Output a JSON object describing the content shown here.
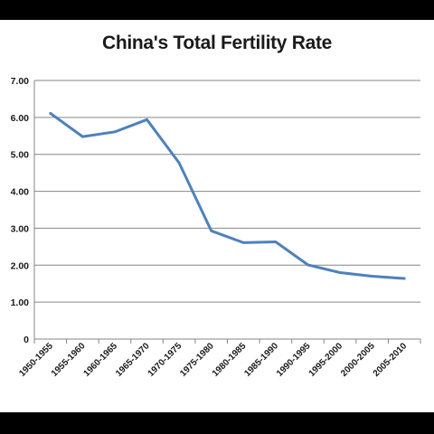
{
  "chart_data": {
    "type": "line",
    "title": "China's Total Fertility Rate",
    "xlabel": "",
    "ylabel": "",
    "categories": [
      "1950-1955",
      "1955-1960",
      "1960-1965",
      "1965-1970",
      "1970-1975",
      "1975-1980",
      "1980-1985",
      "1985-1990",
      "1990-1995",
      "1995-2000",
      "2000-2005",
      "2005-2010"
    ],
    "series": [
      {
        "values": [
          6.11,
          5.48,
          5.61,
          5.94,
          4.77,
          2.93,
          2.61,
          2.63,
          2.01,
          1.8,
          1.7,
          1.64
        ]
      }
    ],
    "ylim": [
      0,
      7
    ],
    "yticks": [
      "0",
      "1.00",
      "2.00",
      "3.00",
      "4.00",
      "5.00",
      "6.00",
      "7.00"
    ],
    "grid": true,
    "line_color": "#4f81bd",
    "grid_color": "#868686"
  }
}
